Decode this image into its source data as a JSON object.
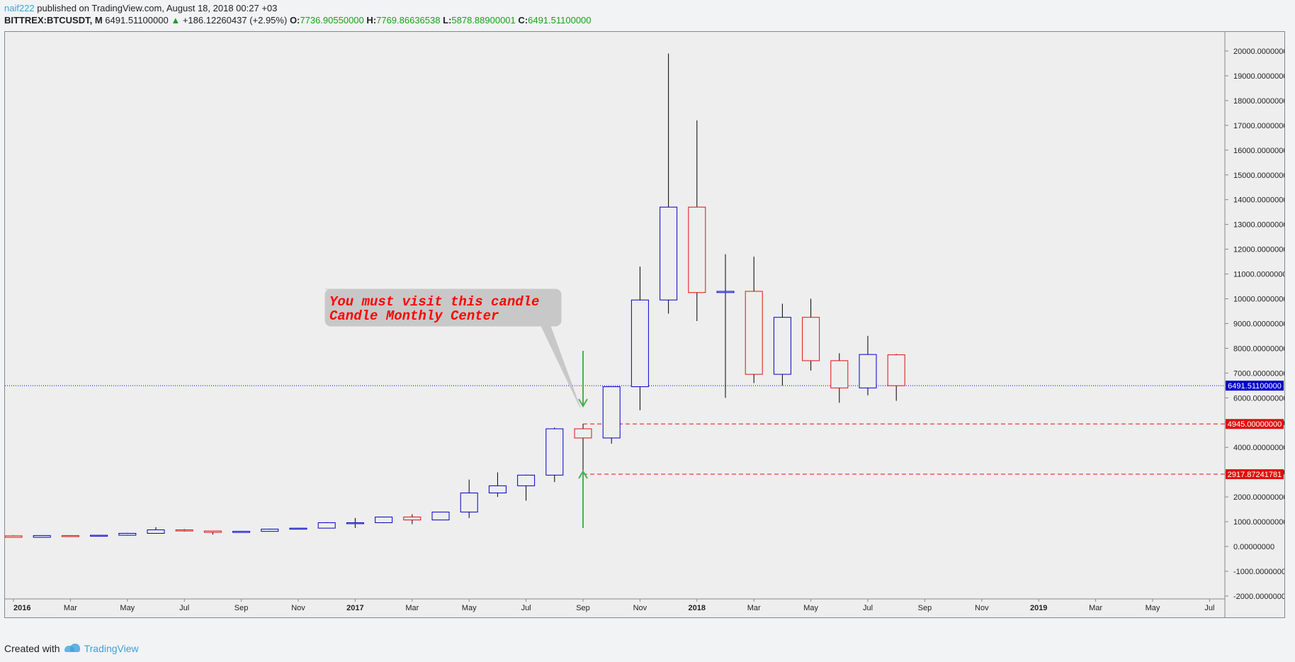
{
  "header": {
    "user": "naif222",
    "published": " published on TradingView.com, August 18, 2018 00:27 +03",
    "symbol": "BITTREX:BTCUSDT, M",
    "last": "6491.51100000",
    "up_arrow": "▲",
    "change": "+186.12260437 (+2.95%)",
    "o_label": "O:",
    "o_value": "7736.90550000",
    "h_label": "H:",
    "h_value": "7769.86636538",
    "l_label": "L:",
    "l_value": "5878.88900001",
    "c_label": "C:",
    "c_value": "6491.51100000"
  },
  "footer": {
    "created_with": "Created with",
    "brand": "TradingView"
  },
  "colors": {
    "up": "#0000cc",
    "down": "#e01010",
    "arrow": "#4caf50",
    "price_line": "#0000cc",
    "level": "#e01010"
  },
  "chart_data": {
    "type": "candlestick",
    "ylim": [
      -2500,
      21000
    ],
    "y_ticks": [
      20000,
      19000,
      18000,
      17000,
      16000,
      15000,
      14000,
      13000,
      12000,
      11000,
      10000,
      9000,
      8000,
      7000,
      6000,
      5000,
      4000,
      3000,
      2000,
      1000,
      0,
      -1000,
      -2000
    ],
    "x_labels": [
      "2016",
      "Mar",
      "May",
      "Jul",
      "Sep",
      "Nov",
      "2017",
      "Mar",
      "May",
      "Jul",
      "Sep",
      "Nov",
      "2018",
      "Mar",
      "May",
      "Jul",
      "Sep",
      "Nov",
      "2019",
      "Mar",
      "May",
      "Jul"
    ],
    "x_label_bold": [
      "2016",
      "2017",
      "2018",
      "2019"
    ],
    "candles": [
      {
        "d": "2016-01",
        "o": 430,
        "h": 450,
        "l": 360,
        "c": 370
      },
      {
        "d": "2016-02",
        "o": 370,
        "h": 440,
        "l": 360,
        "c": 440
      },
      {
        "d": "2016-03",
        "o": 440,
        "h": 450,
        "l": 400,
        "c": 415
      },
      {
        "d": "2016-04",
        "o": 415,
        "h": 470,
        "l": 410,
        "c": 455
      },
      {
        "d": "2016-05",
        "o": 455,
        "h": 550,
        "l": 440,
        "c": 530
      },
      {
        "d": "2016-06",
        "o": 530,
        "h": 780,
        "l": 520,
        "c": 670
      },
      {
        "d": "2016-07",
        "o": 670,
        "h": 700,
        "l": 600,
        "c": 625
      },
      {
        "d": "2016-08",
        "o": 625,
        "h": 630,
        "l": 480,
        "c": 570
      },
      {
        "d": "2016-09",
        "o": 570,
        "h": 620,
        "l": 560,
        "c": 610
      },
      {
        "d": "2016-10",
        "o": 610,
        "h": 720,
        "l": 600,
        "c": 700
      },
      {
        "d": "2016-11",
        "o": 700,
        "h": 760,
        "l": 690,
        "c": 740
      },
      {
        "d": "2016-12",
        "o": 740,
        "h": 980,
        "l": 730,
        "c": 960
      },
      {
        "d": "2017-01",
        "o": 960,
        "h": 1150,
        "l": 750,
        "c": 960
      },
      {
        "d": "2017-02",
        "o": 960,
        "h": 1200,
        "l": 940,
        "c": 1190
      },
      {
        "d": "2017-03",
        "o": 1190,
        "h": 1300,
        "l": 900,
        "c": 1070
      },
      {
        "d": "2017-04",
        "o": 1070,
        "h": 1400,
        "l": 1060,
        "c": 1390
      },
      {
        "d": "2017-05",
        "o": 1390,
        "h": 2700,
        "l": 1150,
        "c": 2160
      },
      {
        "d": "2017-06",
        "o": 2160,
        "h": 2990,
        "l": 2000,
        "c": 2450
      },
      {
        "d": "2017-07",
        "o": 2450,
        "h": 2900,
        "l": 1850,
        "c": 2880
      },
      {
        "d": "2017-08",
        "o": 2880,
        "h": 4800,
        "l": 2600,
        "c": 4750
      },
      {
        "d": "2017-09",
        "o": 4750,
        "h": 4945,
        "l": 2917.87,
        "c": 4380
      },
      {
        "d": "2017-10",
        "o": 4380,
        "h": 6450,
        "l": 4150,
        "c": 6450
      },
      {
        "d": "2017-11",
        "o": 6450,
        "h": 11300,
        "l": 5500,
        "c": 9950
      },
      {
        "d": "2017-12",
        "o": 9950,
        "h": 19900,
        "l": 9400,
        "c": 13700
      },
      {
        "d": "2018-01",
        "o": 13700,
        "h": 17200,
        "l": 9100,
        "c": 10250
      },
      {
        "d": "2018-02",
        "o": 10250,
        "h": 11800,
        "l": 6000,
        "c": 10300
      },
      {
        "d": "2018-03",
        "o": 10300,
        "h": 11700,
        "l": 6600,
        "c": 6950
      },
      {
        "d": "2018-04",
        "o": 6950,
        "h": 9800,
        "l": 6500,
        "c": 9250
      },
      {
        "d": "2018-05",
        "o": 9250,
        "h": 10000,
        "l": 7100,
        "c": 7500
      },
      {
        "d": "2018-06",
        "o": 7500,
        "h": 7800,
        "l": 5800,
        "c": 6400
      },
      {
        "d": "2018-07",
        "o": 6400,
        "h": 8500,
        "l": 6100,
        "c": 7750
      },
      {
        "d": "2018-08",
        "o": 7736.9055,
        "h": 7769.86636538,
        "l": 5878.88900001,
        "c": 6491.511
      }
    ],
    "price_line": {
      "value": 6491.511,
      "label": "6491.51100000"
    },
    "levels": [
      {
        "value": 4945,
        "label": "4945.00000000"
      },
      {
        "value": 2917.87241781,
        "label": "2917.87241781"
      }
    ],
    "annotation": {
      "text": [
        "You must visit this candle",
        "Candle Monthly Center"
      ]
    }
  }
}
